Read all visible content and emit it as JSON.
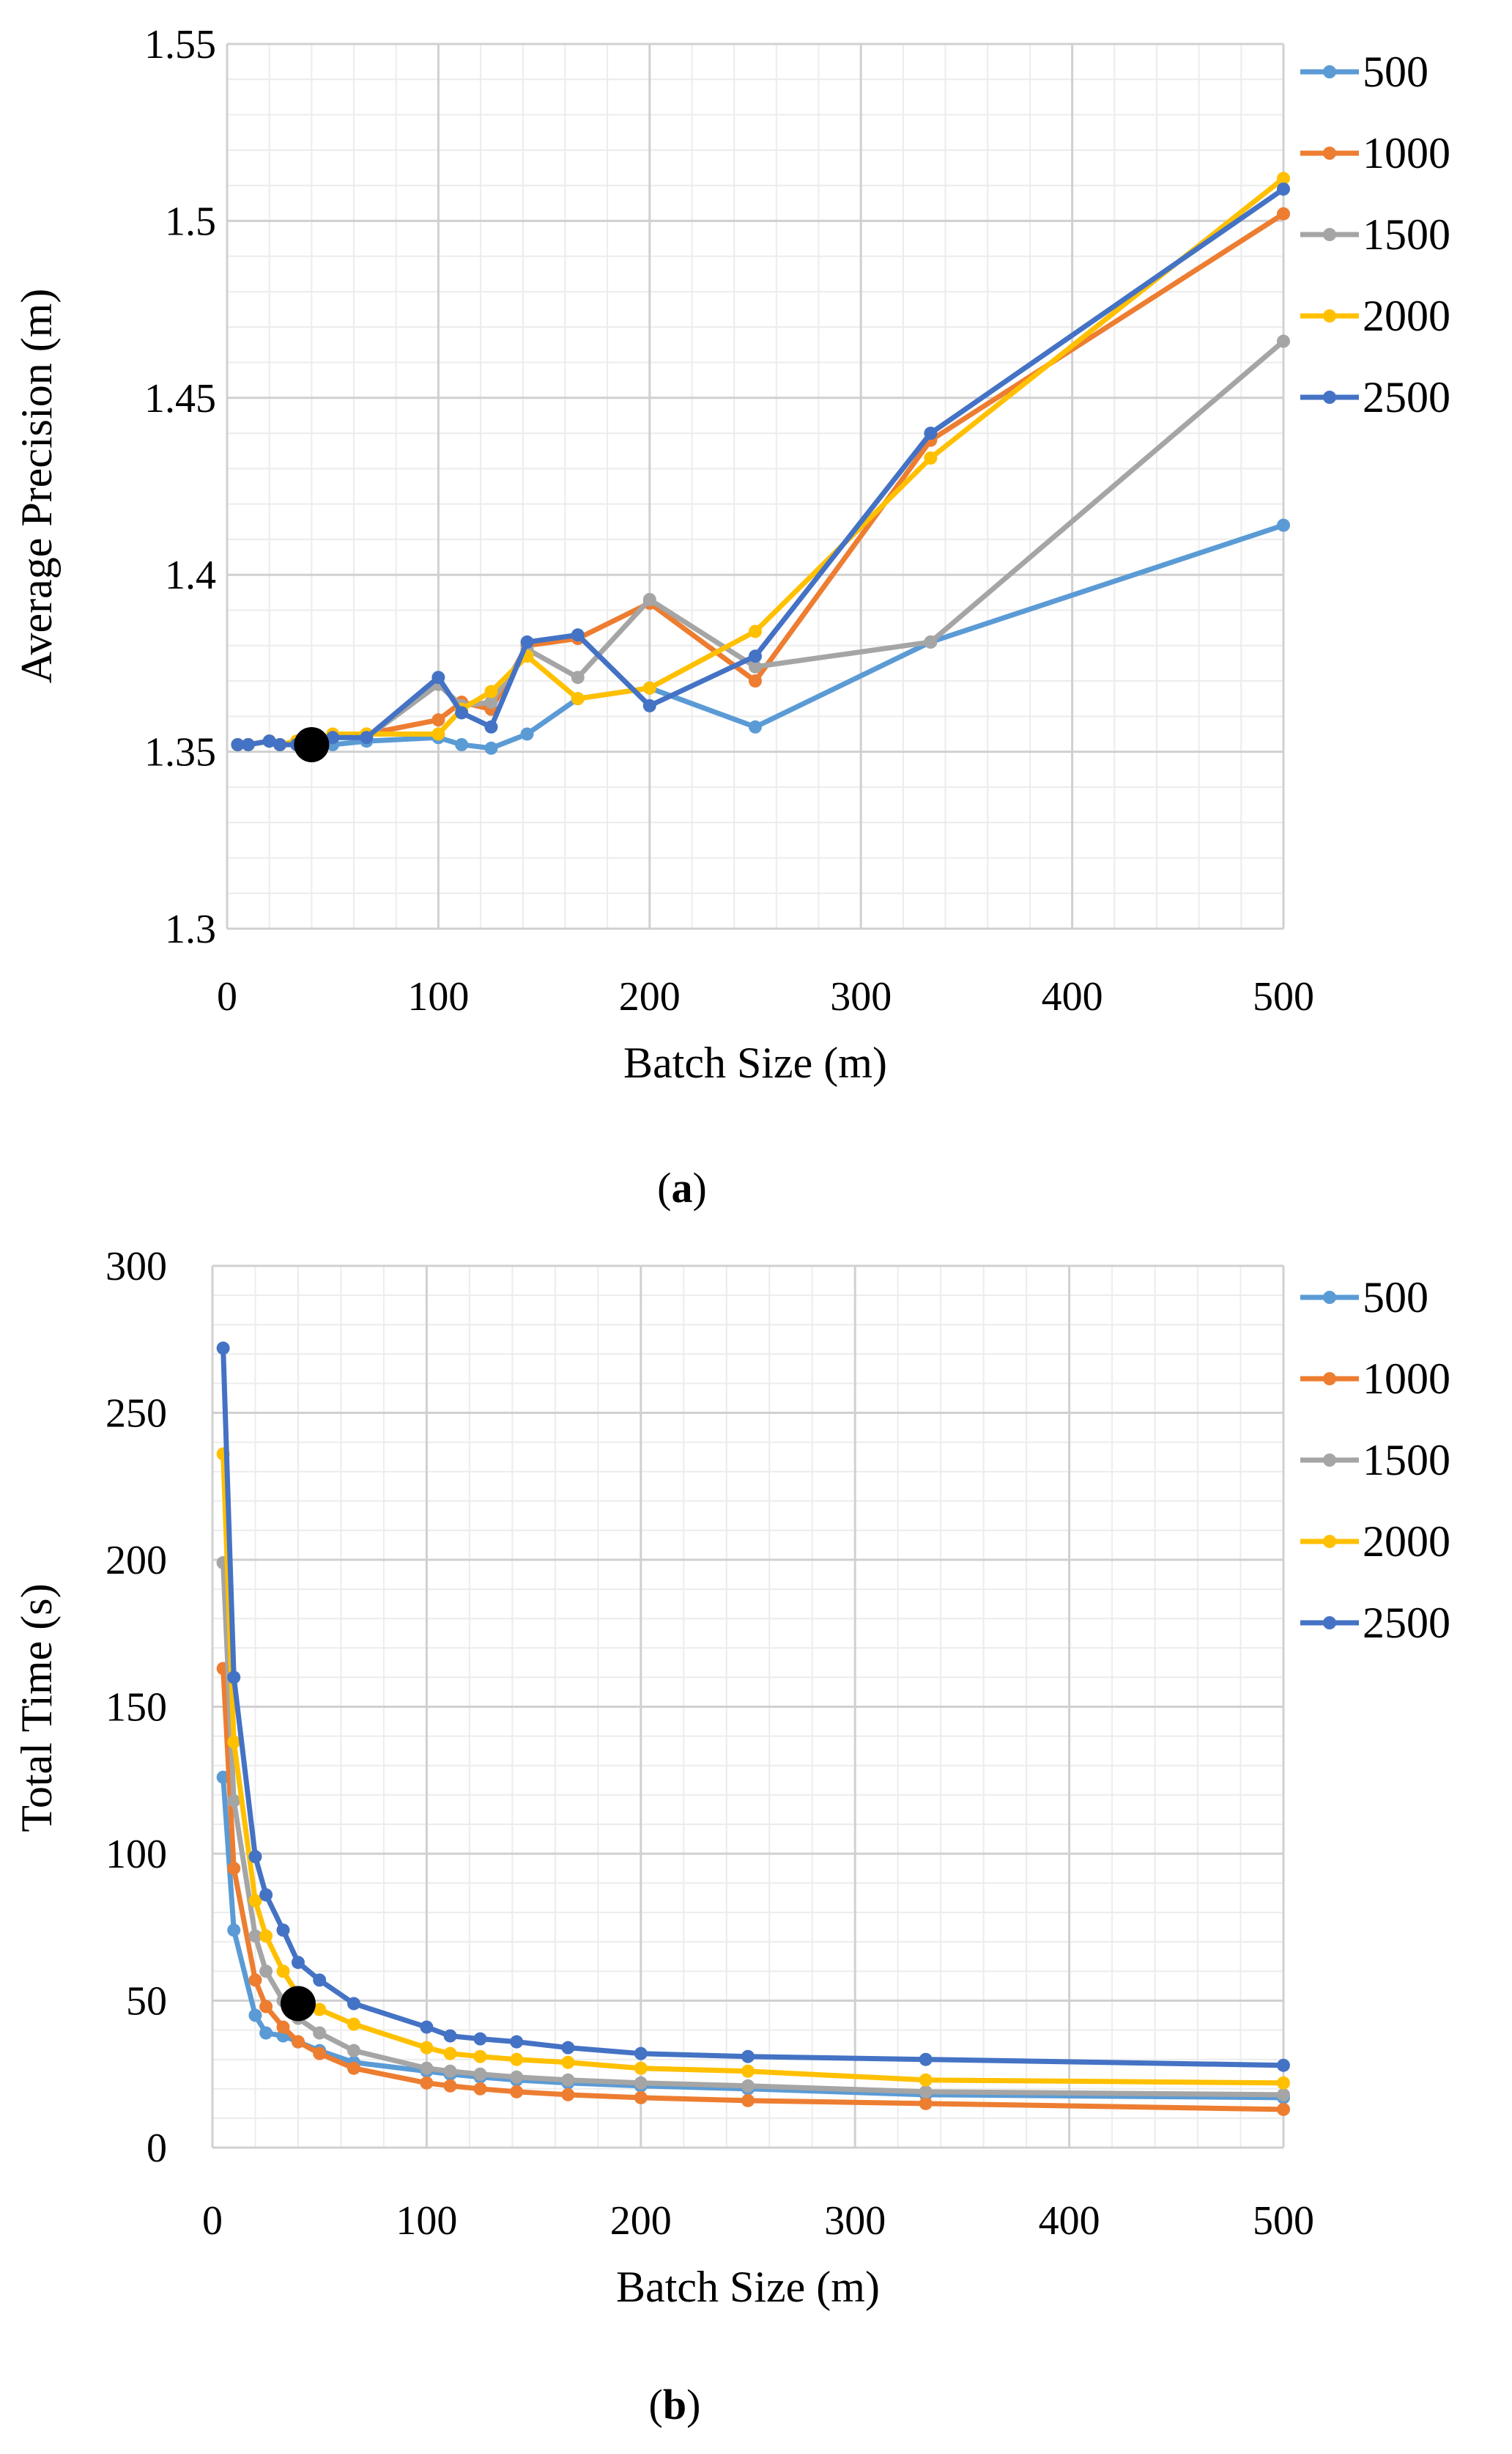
{
  "chart_data": [
    {
      "type": "line",
      "panel_label": "a",
      "xlabel": "Batch Size (m)",
      "ylabel": "Average Precision (m)",
      "xlim": [
        0,
        500
      ],
      "ylim": [
        1.3,
        1.55
      ],
      "x_ticks": [
        "0",
        "100",
        "200",
        "300",
        "400",
        "500"
      ],
      "y_ticks": [
        "1.3",
        "1.35",
        "1.4",
        "1.45",
        "1.5",
        "1.55"
      ],
      "grid": true,
      "legend_position": "right",
      "series": [
        {
          "name": "500",
          "color": "#5B9BD5",
          "x": [
            5,
            10,
            20,
            25,
            33,
            40,
            50,
            66,
            100,
            111,
            125,
            142,
            166,
            200,
            250,
            333,
            500
          ],
          "y": [
            1.352,
            1.352,
            1.353,
            1.352,
            1.352,
            1.352,
            1.352,
            1.353,
            1.354,
            1.352,
            1.351,
            1.355,
            1.365,
            1.368,
            1.357,
            1.381,
            1.414
          ]
        },
        {
          "name": "1000",
          "color": "#ED7D31",
          "x": [
            5,
            10,
            20,
            25,
            33,
            40,
            50,
            66,
            100,
            111,
            125,
            142,
            166,
            200,
            250,
            333,
            500
          ],
          "y": [
            1.352,
            1.352,
            1.353,
            1.352,
            1.353,
            1.353,
            1.354,
            1.355,
            1.359,
            1.364,
            1.362,
            1.38,
            1.382,
            1.392,
            1.37,
            1.438,
            1.502
          ]
        },
        {
          "name": "1500",
          "color": "#A5A5A5",
          "x": [
            5,
            10,
            20,
            25,
            33,
            40,
            50,
            66,
            100,
            111,
            125,
            142,
            166,
            200,
            250,
            333,
            500
          ],
          "y": [
            1.352,
            1.352,
            1.353,
            1.352,
            1.352,
            1.353,
            1.354,
            1.354,
            1.369,
            1.363,
            1.364,
            1.379,
            1.371,
            1.393,
            1.374,
            1.381,
            1.466
          ]
        },
        {
          "name": "2000",
          "color": "#FFC000",
          "x": [
            5,
            10,
            20,
            25,
            33,
            40,
            50,
            66,
            100,
            111,
            125,
            142,
            166,
            200,
            250,
            333,
            500
          ],
          "y": [
            1.352,
            1.352,
            1.353,
            1.352,
            1.353,
            1.353,
            1.355,
            1.355,
            1.355,
            1.362,
            1.367,
            1.377,
            1.365,
            1.368,
            1.384,
            1.433,
            1.512
          ]
        },
        {
          "name": "2500",
          "color": "#4472C4",
          "x": [
            5,
            10,
            20,
            25,
            33,
            40,
            50,
            66,
            100,
            111,
            125,
            142,
            166,
            200,
            250,
            333,
            500
          ],
          "y": [
            1.352,
            1.352,
            1.353,
            1.352,
            1.352,
            1.352,
            1.354,
            1.354,
            1.371,
            1.361,
            1.357,
            1.381,
            1.383,
            1.363,
            1.377,
            1.44,
            1.509
          ]
        }
      ],
      "highlight_point": {
        "x": 40,
        "y": 1.352,
        "color": "#000000"
      }
    },
    {
      "type": "line",
      "panel_label": "b",
      "xlabel": "Batch Size (m)",
      "ylabel": "Total Time (s)",
      "xlim": [
        0,
        500
      ],
      "ylim": [
        0,
        300
      ],
      "x_ticks": [
        "0",
        "100",
        "200",
        "300",
        "400",
        "500"
      ],
      "y_ticks": [
        "0",
        "50",
        "100",
        "150",
        "200",
        "250",
        "300"
      ],
      "grid": true,
      "legend_position": "right",
      "series": [
        {
          "name": "500",
          "color": "#5B9BD5",
          "x": [
            5,
            10,
            20,
            25,
            33,
            40,
            50,
            66,
            100,
            111,
            125,
            142,
            166,
            200,
            250,
            333,
            500
          ],
          "y": [
            126,
            74,
            45,
            39,
            38,
            36,
            33,
            29,
            26,
            25,
            24,
            23,
            22,
            21,
            20,
            18,
            17
          ]
        },
        {
          "name": "1000",
          "color": "#ED7D31",
          "x": [
            5,
            10,
            20,
            25,
            33,
            40,
            50,
            66,
            100,
            111,
            125,
            142,
            166,
            200,
            250,
            333,
            500
          ],
          "y": [
            163,
            95,
            57,
            48,
            41,
            36,
            32,
            27,
            22,
            21,
            20,
            19,
            18,
            17,
            16,
            15,
            13
          ]
        },
        {
          "name": "1500",
          "color": "#A5A5A5",
          "x": [
            5,
            10,
            20,
            25,
            33,
            40,
            50,
            66,
            100,
            111,
            125,
            142,
            166,
            200,
            250,
            333,
            500
          ],
          "y": [
            199,
            118,
            72,
            60,
            50,
            44,
            39,
            33,
            27,
            26,
            25,
            24,
            23,
            22,
            21,
            19,
            18
          ]
        },
        {
          "name": "2000",
          "color": "#FFC000",
          "x": [
            5,
            10,
            20,
            25,
            33,
            40,
            50,
            66,
            100,
            111,
            125,
            142,
            166,
            200,
            250,
            333,
            500
          ],
          "y": [
            236,
            138,
            84,
            72,
            60,
            52,
            47,
            42,
            34,
            32,
            31,
            30,
            29,
            27,
            26,
            23,
            22
          ]
        },
        {
          "name": "2500",
          "color": "#4472C4",
          "x": [
            5,
            10,
            20,
            25,
            33,
            40,
            50,
            66,
            100,
            111,
            125,
            142,
            166,
            200,
            250,
            333,
            500
          ],
          "y": [
            272,
            160,
            99,
            86,
            74,
            63,
            57,
            49,
            41,
            38,
            37,
            36,
            34,
            32,
            31,
            30,
            28
          ]
        }
      ],
      "highlight_point": {
        "x": 40,
        "y": 49,
        "color": "#000000"
      }
    }
  ]
}
